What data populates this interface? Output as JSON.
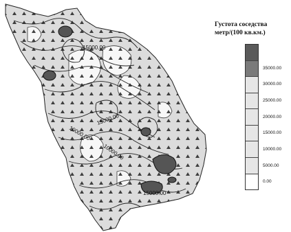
{
  "legend": {
    "title_line1": "Густота соседства",
    "title_line2": "метр/(100 кв.км.)",
    "classes": [
      {
        "label": "",
        "color": "#5a5a5a"
      },
      {
        "label": "35000.00",
        "color": "#7a7a7a"
      },
      {
        "label": "30000.00",
        "color": "#e6e6e6"
      },
      {
        "label": "25000.00",
        "color": "#e6e6e6"
      },
      {
        "label": "20000.00",
        "color": "#e6e6e6"
      },
      {
        "label": "15000.00",
        "color": "#e6e6e6"
      },
      {
        "label": "10000.00",
        "color": "#e6e6e6"
      },
      {
        "label": "5000.00",
        "color": "#e6e6e6"
      },
      {
        "label": "0.00",
        "color": "#ffffff"
      }
    ]
  },
  "map": {
    "region_fill": "#dcdcdc",
    "hotspot_fill": "#555555",
    "contour_labels": [
      "15000.00",
      "15000.00",
      "10000.00",
      "10000.00",
      "15000.00"
    ]
  }
}
